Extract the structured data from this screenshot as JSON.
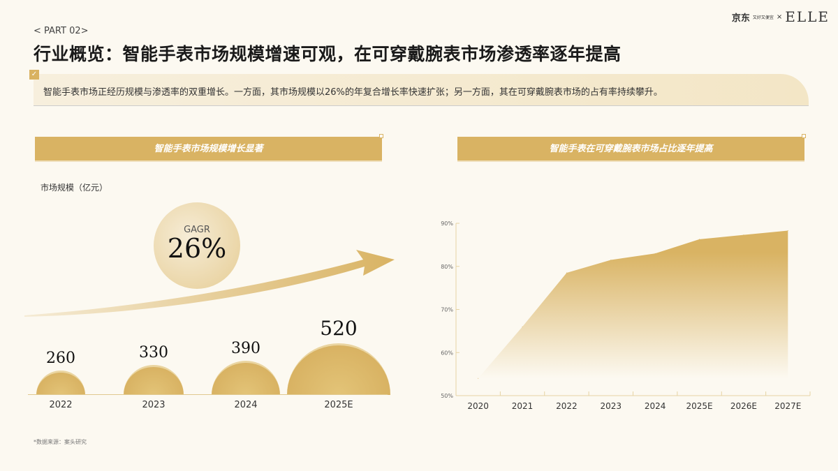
{
  "header": {
    "part": "< PART 02>",
    "title": "行业概览：智能手表市场规模增速可观，在可穿戴腕表市场渗透率逐年提高",
    "logo_text": "京东",
    "logo_sub": "又好又便宜",
    "logo_x": "×",
    "logo_brand": "ELLE"
  },
  "summary": "智能手表市场正经历规模与渗透率的双重增长。一方面，其市场规模以26%的年复合增长率快速扩张；另一方面，其在可穿戴腕表市场的占有率持续攀升。",
  "left": {
    "banner": "智能手表市场规模增长显著",
    "unit": "市场规模（亿元）",
    "cagr_label": "GAGR",
    "cagr_value": "26%",
    "source": "*数据来源：案头研究"
  },
  "right": {
    "banner": "智能手表在可穿戴腕表市场占比逐年提高"
  },
  "chart_data": [
    {
      "type": "bar",
      "title": "智能手表市场规模增长显著",
      "ylabel": "市场规模（亿元）",
      "categories": [
        "2022",
        "2023",
        "2024",
        "2025E"
      ],
      "values": [
        260,
        330,
        390,
        520
      ],
      "labels": [
        "260",
        "330",
        "390",
        "520"
      ]
    },
    {
      "type": "area",
      "title": "智能手表在可穿戴腕表市场占比逐年提高",
      "categories": [
        "2020",
        "2021",
        "2022",
        "2023",
        "2024",
        "2025E",
        "2026E",
        "2027E"
      ],
      "values": [
        54,
        66,
        78.5,
        81.5,
        83,
        86.3,
        87.3,
        88.3
      ],
      "ylim": [
        50,
        90
      ],
      "yticks": [
        "50%",
        "60%",
        "70%",
        "80%",
        "90%"
      ],
      "color": "#d9b363"
    }
  ]
}
